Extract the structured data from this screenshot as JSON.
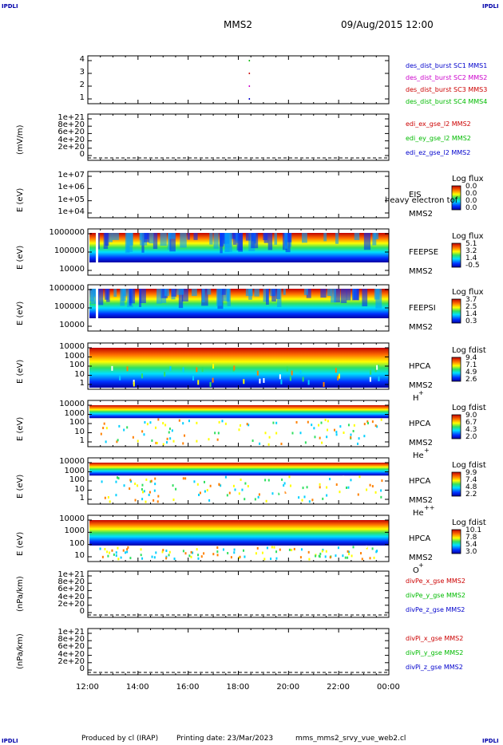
{
  "header": {
    "corner_label": "IPDLI",
    "spacecraft": "MMS2",
    "datetime": "09/Aug/2015 12:00"
  },
  "colors": {
    "mms1": "#0000cc",
    "mms2": "#cc00cc",
    "mms3": "#cc0000",
    "mms4": "#00bb00"
  },
  "panels": [
    {
      "id": "p1",
      "ylabel": "",
      "ticks": [
        "4",
        "3",
        "2",
        "1"
      ],
      "legend": [
        {
          "text": "des_dist_burst SC1 MMS1",
          "color": "#0000cc"
        },
        {
          "text": "des_dist_burst SC2 MMS2",
          "color": "#cc00cc"
        },
        {
          "text": "des_dist_burst SC3 MMS3",
          "color": "#cc0000"
        },
        {
          "text": "des_dist_burst SC4 MMS4",
          "color": "#00bb00"
        }
      ]
    },
    {
      "id": "p2",
      "ylabel": "(mV/m)",
      "ticks": [
        "1e+21",
        "8e+20",
        "6e+20",
        "4e+20",
        "2e+20",
        "0"
      ],
      "legend": [
        {
          "text": "edi_ex_gse_l2 MMS2",
          "color": "#cc0000"
        },
        {
          "text": "edi_ey_gse_l2 MMS2",
          "color": "#00bb00"
        },
        {
          "text": "edi_ez_gse_l2 MMS2",
          "color": "#0000cc"
        }
      ]
    },
    {
      "id": "p3",
      "ylabel": "E (eV)",
      "ticks": [
        "1e+07",
        "1e+06",
        "1e+05",
        "1e+04"
      ],
      "side": [
        "EIS",
        "MMS2"
      ],
      "overlay": "heavy electron tof",
      "cb_title": "Log flux",
      "cb_values": [
        "0.0",
        "0.0",
        "0.0",
        "0.0"
      ]
    },
    {
      "id": "p4",
      "ylabel": "E (eV)",
      "ticks": [
        "1000000",
        "100000",
        "10000"
      ],
      "side": [
        "FEEPSE",
        "MMS2"
      ],
      "cb_title": "Log flux",
      "cb_values": [
        "5.1",
        "3.2",
        "1.4",
        "-0.5"
      ]
    },
    {
      "id": "p5",
      "ylabel": "E (eV)",
      "ticks": [
        "1000000",
        "100000",
        "10000"
      ],
      "side": [
        "FEEPSI",
        "MMS2"
      ],
      "cb_title": "Log flux",
      "cb_values": [
        "3.7",
        "2.5",
        "1.4",
        "0.3"
      ]
    },
    {
      "id": "p6",
      "ylabel": "E (eV)",
      "ticks": [
        "10000",
        "1000",
        "100",
        "10",
        "1"
      ],
      "side": [
        "HPCA",
        "MMS2"
      ],
      "species": "H",
      "charge": "+",
      "cb_title": "Log fdist",
      "cb_values": [
        "9.4",
        "7.1",
        "4.9",
        "2.6"
      ]
    },
    {
      "id": "p7",
      "ylabel": "E (eV)",
      "ticks": [
        "10000",
        "1000",
        "100",
        "10",
        "1"
      ],
      "side": [
        "HPCA",
        "MMS2"
      ],
      "species": "He",
      "charge": "+",
      "cb_title": "Log fdist",
      "cb_values": [
        "9.0",
        "6.7",
        "4.3",
        "2.0"
      ]
    },
    {
      "id": "p8",
      "ylabel": "E (eV)",
      "ticks": [
        "10000",
        "1000",
        "100",
        "10",
        "1"
      ],
      "side": [
        "HPCA",
        "MMS2"
      ],
      "species": "He",
      "charge": "++",
      "cb_title": "Log fdist",
      "cb_values": [
        "9.9",
        "7.4",
        "4.8",
        "2.2"
      ]
    },
    {
      "id": "p9",
      "ylabel": "E (eV)",
      "ticks": [
        "10000",
        "1000",
        "100",
        "10"
      ],
      "side": [
        "HPCA",
        "MMS2"
      ],
      "species": "O",
      "charge": "+",
      "cb_title": "Log fdist",
      "cb_values": [
        "10.1",
        "7.8",
        "5.4",
        "3.0"
      ]
    },
    {
      "id": "p10",
      "ylabel": "(nPa/km)",
      "ticks": [
        "1e+21",
        "8e+20",
        "6e+20",
        "4e+20",
        "2e+20",
        "0"
      ],
      "legend": [
        {
          "text": "divPe_x_gse MMS2",
          "color": "#cc0000"
        },
        {
          "text": "divPe_y_gse MMS2",
          "color": "#00bb00"
        },
        {
          "text": "divPe_z_gse MMS2",
          "color": "#0000cc"
        }
      ]
    },
    {
      "id": "p11",
      "ylabel": "(nPa/km)",
      "ticks": [
        "1e+21",
        "8e+20",
        "6e+20",
        "4e+20",
        "2e+20",
        "0"
      ],
      "legend": [
        {
          "text": "divPi_x_gse MMS2",
          "color": "#cc0000"
        },
        {
          "text": "divPi_y_gse MMS2",
          "color": "#00bb00"
        },
        {
          "text": "divPi_z_gse MMS2",
          "color": "#0000cc"
        }
      ]
    }
  ],
  "xaxis": {
    "ticks": [
      "12:00",
      "14:00",
      "16:00",
      "18:00",
      "20:00",
      "22:00",
      "00:00"
    ]
  },
  "footer": {
    "produced": "Produced by cl (IRAP)",
    "printing": "Printing date: 23/Mar/2023",
    "file": "mms_mms2_srvy_vue_web2.cl"
  },
  "chart_data": {
    "type": "heatmap",
    "title": "MMS2",
    "subtitle": "09/Aug/2015 12:00",
    "x": [
      "12:00",
      "14:00",
      "16:00",
      "18:00",
      "20:00",
      "22:00",
      "00:00"
    ],
    "burst_markers": [
      {
        "series": "des_dist_burst SC4 MMS4",
        "y": 4,
        "x": "18:25"
      },
      {
        "series": "des_dist_burst SC3 MMS3",
        "y": 3,
        "x": "18:25"
      },
      {
        "series": "des_dist_burst SC2 MMS2",
        "y": 2,
        "x": "18:25"
      },
      {
        "series": "des_dist_burst SC1 MMS1",
        "y": 1,
        "x": "18:25"
      }
    ],
    "grid": false
  }
}
